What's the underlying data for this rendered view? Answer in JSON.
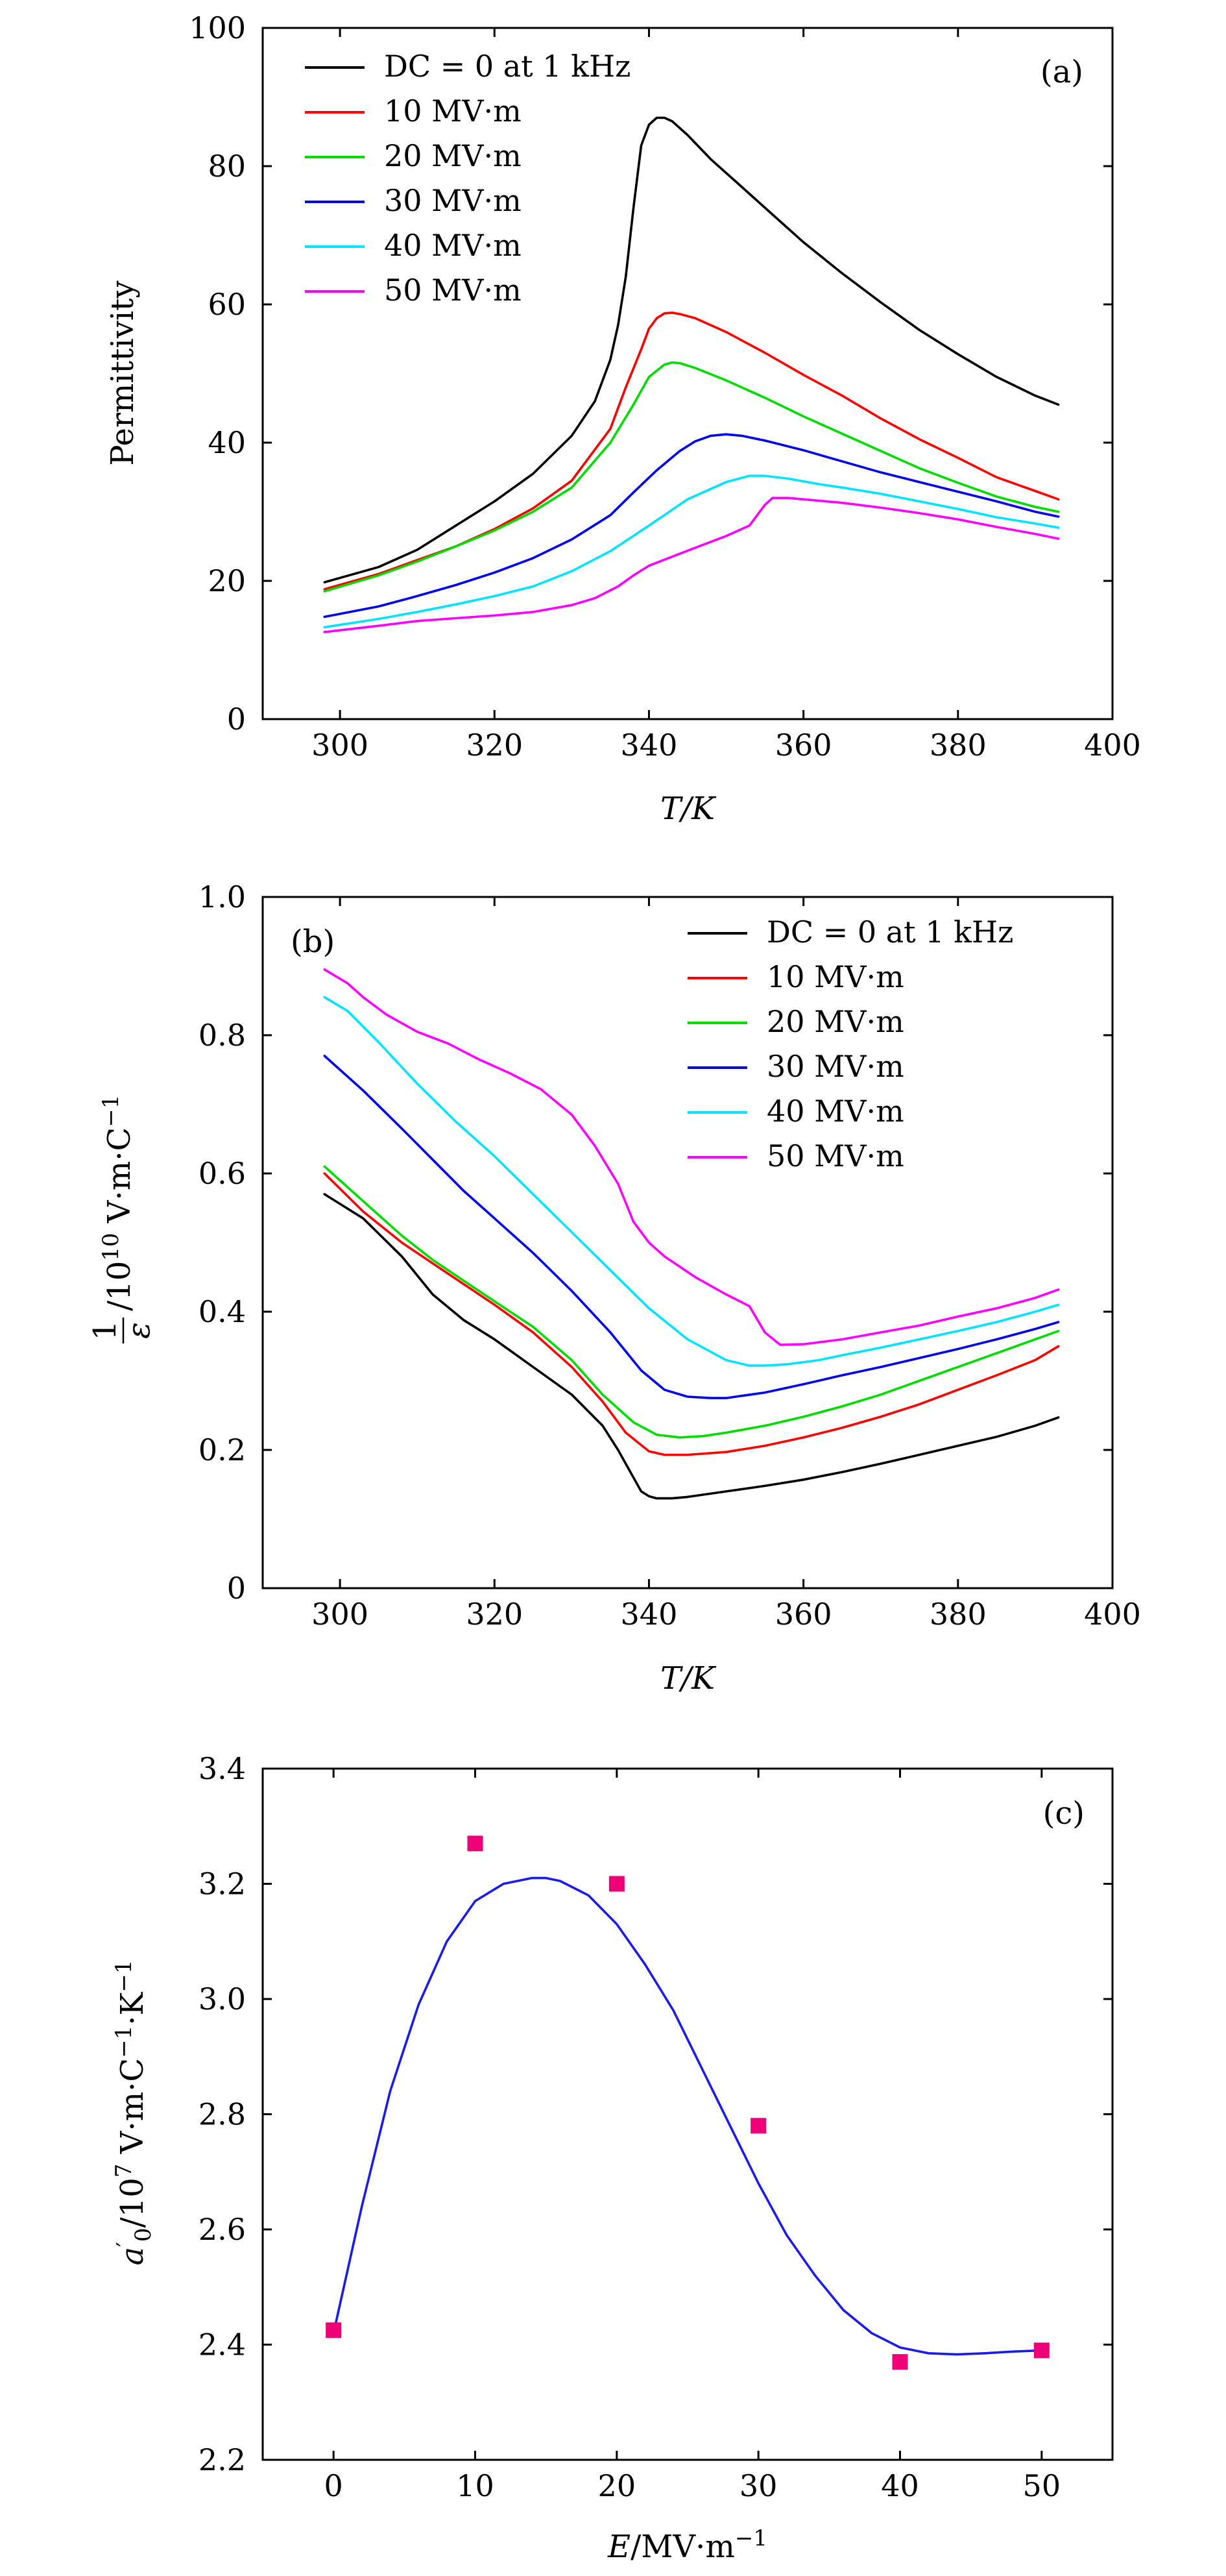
{
  "chart_data": [
    {
      "type": "line",
      "panel_label": "(a)",
      "xlabel": "T/K",
      "ylabel": "Permittivity",
      "xlim": [
        290,
        400
      ],
      "ylim": [
        0,
        100
      ],
      "xticks": [
        300,
        320,
        340,
        360,
        380,
        400
      ],
      "yticks": [
        0,
        20,
        40,
        60,
        80,
        100
      ],
      "grid": false,
      "legend_position": "top-left",
      "series": [
        {
          "name": "DC = 0 at 1 kHz",
          "color": "#000000",
          "x": [
            298,
            305,
            310,
            315,
            320,
            325,
            330,
            333,
            335,
            336,
            337,
            338,
            339,
            340,
            341,
            342,
            343,
            345,
            348,
            352,
            356,
            360,
            365,
            370,
            375,
            380,
            385,
            390,
            393
          ],
          "y": [
            19.8,
            22,
            24.5,
            28,
            31.5,
            35.5,
            41,
            46,
            52,
            57,
            64,
            74,
            83,
            86,
            87,
            87,
            86.5,
            84.5,
            81,
            77,
            73,
            69,
            64.5,
            60.3,
            56.3,
            52.8,
            49.5,
            46.8,
            45.5
          ]
        },
        {
          "name": "10 MV·m",
          "color": "#ff0000",
          "x": [
            298,
            305,
            310,
            315,
            320,
            325,
            330,
            335,
            337,
            339,
            340,
            341,
            342,
            343,
            344,
            346,
            350,
            355,
            360,
            365,
            370,
            375,
            380,
            385,
            390,
            393
          ],
          "y": [
            18.8,
            21,
            23,
            25,
            27.5,
            30.5,
            34.5,
            42,
            48,
            53.5,
            56.5,
            58,
            58.7,
            58.8,
            58.6,
            58,
            56,
            53,
            49.8,
            46.8,
            43.5,
            40.5,
            37.8,
            35,
            33,
            31.8
          ]
        },
        {
          "name": "20 MV·m",
          "color": "#00dd00",
          "x": [
            298,
            305,
            310,
            315,
            320,
            325,
            330,
            335,
            338,
            340,
            342,
            343,
            344,
            346,
            350,
            355,
            360,
            365,
            370,
            375,
            380,
            385,
            390,
            393
          ],
          "y": [
            18.5,
            20.8,
            22.8,
            25,
            27.3,
            30,
            33.5,
            40,
            45.5,
            49.5,
            51.3,
            51.6,
            51.5,
            50.8,
            49,
            46.5,
            43.8,
            41.3,
            38.8,
            36.3,
            34.2,
            32.2,
            30.7,
            30
          ]
        },
        {
          "name": "30 MV·m",
          "color": "#0000ee",
          "x": [
            298,
            305,
            310,
            315,
            320,
            325,
            330,
            335,
            338,
            341,
            344,
            346,
            348,
            350,
            352,
            355,
            360,
            365,
            370,
            375,
            380,
            385,
            390,
            393
          ],
          "y": [
            14.8,
            16.3,
            17.8,
            19.4,
            21.2,
            23.3,
            26,
            29.5,
            32.8,
            36,
            38.8,
            40.2,
            41,
            41.2,
            41,
            40.3,
            38.9,
            37.3,
            35.7,
            34.3,
            32.9,
            31.5,
            30,
            29.3
          ]
        },
        {
          "name": "40 MV·m",
          "color": "#00e5ff",
          "x": [
            298,
            305,
            310,
            315,
            320,
            325,
            330,
            335,
            340,
            345,
            350,
            353,
            355,
            358,
            362,
            365,
            370,
            375,
            380,
            385,
            390,
            393
          ],
          "y": [
            13.3,
            14.5,
            15.5,
            16.6,
            17.8,
            19.2,
            21.4,
            24.3,
            28,
            31.8,
            34.3,
            35.2,
            35.2,
            34.8,
            34,
            33.5,
            32.6,
            31.5,
            30.4,
            29.2,
            28.3,
            27.7
          ]
        },
        {
          "name": "50 MV·m",
          "color": "#ff00ff",
          "x": [
            298,
            305,
            310,
            315,
            320,
            325,
            330,
            333,
            336,
            338,
            340,
            343,
            346,
            350,
            353,
            355,
            356,
            358,
            360,
            365,
            370,
            375,
            380,
            385,
            390,
            393
          ],
          "y": [
            12.6,
            13.5,
            14.2,
            14.6,
            15,
            15.5,
            16.5,
            17.5,
            19.2,
            20.8,
            22.2,
            23.5,
            24.8,
            26.5,
            28,
            31,
            32,
            32,
            31.8,
            31.3,
            30.6,
            29.8,
            28.9,
            27.8,
            26.8,
            26.1
          ]
        }
      ]
    },
    {
      "type": "line",
      "panel_label": "(b)",
      "xlabel": "T/K",
      "ylabel_frac_num": "1",
      "ylabel_frac_den": "ε",
      "ylabel_rest": "/10",
      "ylabel_exp": "10",
      "ylabel_unit": " V·m·C",
      "ylabel_unit_exp": "−1",
      "xlim": [
        290,
        400
      ],
      "ylim": [
        0,
        1.0
      ],
      "xticks": [
        300,
        320,
        340,
        360,
        380,
        400
      ],
      "yticks": [
        0,
        0.2,
        0.4,
        0.6,
        0.8,
        1.0
      ],
      "ytick_labels": [
        "0",
        "0.2",
        "0.4",
        "0.6",
        "0.8",
        "1.0"
      ],
      "grid": false,
      "legend_position": "top-right",
      "series": [
        {
          "name": "DC = 0 at 1 kHz",
          "color": "#000000",
          "x": [
            298,
            303,
            308,
            312,
            316,
            320,
            325,
            330,
            334,
            336,
            338,
            339,
            340,
            341,
            343,
            345,
            350,
            355,
            360,
            365,
            370,
            375,
            380,
            385,
            390,
            393
          ],
          "y": [
            0.57,
            0.535,
            0.48,
            0.425,
            0.388,
            0.36,
            0.32,
            0.28,
            0.235,
            0.2,
            0.16,
            0.14,
            0.133,
            0.13,
            0.13,
            0.132,
            0.14,
            0.148,
            0.157,
            0.168,
            0.18,
            0.193,
            0.206,
            0.219,
            0.235,
            0.247
          ]
        },
        {
          "name": "10 MV·m",
          "color": "#ff0000",
          "x": [
            298,
            303,
            308,
            312,
            316,
            320,
            325,
            330,
            334,
            337,
            340,
            342,
            345,
            350,
            355,
            360,
            365,
            370,
            375,
            380,
            385,
            390,
            393
          ],
          "y": [
            0.6,
            0.545,
            0.5,
            0.47,
            0.44,
            0.41,
            0.37,
            0.32,
            0.27,
            0.225,
            0.198,
            0.193,
            0.193,
            0.197,
            0.206,
            0.218,
            0.232,
            0.248,
            0.266,
            0.287,
            0.308,
            0.33,
            0.35
          ]
        },
        {
          "name": "20 MV·m",
          "color": "#00dd00",
          "x": [
            298,
            303,
            308,
            312,
            316,
            320,
            325,
            330,
            334,
            338,
            341,
            344,
            347,
            350,
            355,
            360,
            365,
            370,
            375,
            380,
            385,
            390,
            393
          ],
          "y": [
            0.61,
            0.56,
            0.51,
            0.475,
            0.445,
            0.415,
            0.378,
            0.33,
            0.28,
            0.24,
            0.222,
            0.218,
            0.22,
            0.225,
            0.235,
            0.248,
            0.263,
            0.28,
            0.3,
            0.32,
            0.34,
            0.36,
            0.372
          ]
        },
        {
          "name": "30 MV·m",
          "color": "#0000ee",
          "x": [
            298,
            303,
            308,
            312,
            316,
            320,
            325,
            330,
            335,
            339,
            342,
            345,
            348,
            350,
            355,
            360,
            365,
            370,
            375,
            380,
            385,
            390,
            393
          ],
          "y": [
            0.77,
            0.72,
            0.665,
            0.62,
            0.575,
            0.535,
            0.485,
            0.43,
            0.37,
            0.315,
            0.287,
            0.277,
            0.275,
            0.275,
            0.283,
            0.295,
            0.308,
            0.32,
            0.333,
            0.346,
            0.36,
            0.375,
            0.385
          ]
        },
        {
          "name": "40 MV·m",
          "color": "#00e5ff",
          "x": [
            298,
            301,
            305,
            310,
            315,
            320,
            325,
            330,
            335,
            340,
            345,
            350,
            353,
            355,
            358,
            362,
            365,
            370,
            375,
            380,
            385,
            390,
            393
          ],
          "y": [
            0.855,
            0.835,
            0.79,
            0.73,
            0.675,
            0.625,
            0.57,
            0.515,
            0.46,
            0.405,
            0.36,
            0.33,
            0.322,
            0.322,
            0.324,
            0.33,
            0.337,
            0.348,
            0.36,
            0.372,
            0.385,
            0.4,
            0.41
          ]
        },
        {
          "name": "50 MV·m",
          "color": "#ff00ff",
          "x": [
            298,
            301,
            303,
            306,
            310,
            314,
            318,
            322,
            326,
            330,
            333,
            336,
            338,
            340,
            342,
            346,
            350,
            353,
            355,
            357,
            360,
            365,
            370,
            375,
            380,
            385,
            390,
            393
          ],
          "y": [
            0.895,
            0.875,
            0.855,
            0.83,
            0.805,
            0.788,
            0.765,
            0.745,
            0.722,
            0.685,
            0.64,
            0.585,
            0.53,
            0.5,
            0.48,
            0.45,
            0.425,
            0.408,
            0.37,
            0.352,
            0.353,
            0.36,
            0.37,
            0.38,
            0.393,
            0.405,
            0.42,
            0.432
          ]
        }
      ]
    },
    {
      "type": "scatter",
      "panel_label": "(c)",
      "xlabel": "E/MV·m",
      "xlabel_var": "E",
      "xlabel_rest": "/MV·m",
      "xlabel_exp": "−1",
      "ylabel_var": "a",
      "ylabel_sub": "0",
      "ylabel_prime": "′",
      "ylabel_rest": "/10",
      "ylabel_exp": "7",
      "ylabel_unit": " V·m·C",
      "ylabel_unit_exp": "−1",
      "ylabel_unit2": "·K",
      "ylabel_unit2_exp": "−1",
      "xlim": [
        -5,
        55
      ],
      "ylim": [
        2.2,
        3.4
      ],
      "xticks": [
        0,
        10,
        20,
        30,
        40,
        50
      ],
      "yticks": [
        2.2,
        2.4,
        2.6,
        2.8,
        3.0,
        3.2,
        3.4
      ],
      "ytick_labels": [
        "2.2",
        "2.4",
        "2.6",
        "2.8",
        "3.0",
        "3.2",
        "3.4"
      ],
      "grid": false,
      "points": {
        "color": "#ee0077",
        "x": [
          0,
          10,
          20,
          30,
          40,
          50
        ],
        "y": [
          2.425,
          3.27,
          3.2,
          2.78,
          2.37,
          2.39
        ]
      },
      "fit": {
        "color": "#1a1aee",
        "x": [
          0,
          2,
          4,
          6,
          8,
          10,
          12,
          14,
          15,
          16,
          18,
          20,
          22,
          24,
          26,
          28,
          30,
          32,
          34,
          36,
          38,
          40,
          42,
          44,
          46,
          48,
          50
        ],
        "y": [
          2.42,
          2.64,
          2.84,
          2.99,
          3.1,
          3.17,
          3.2,
          3.21,
          3.21,
          3.205,
          3.18,
          3.13,
          3.06,
          2.98,
          2.88,
          2.78,
          2.68,
          2.59,
          2.52,
          2.46,
          2.42,
          2.395,
          2.385,
          2.383,
          2.385,
          2.388,
          2.39
        ]
      }
    }
  ]
}
